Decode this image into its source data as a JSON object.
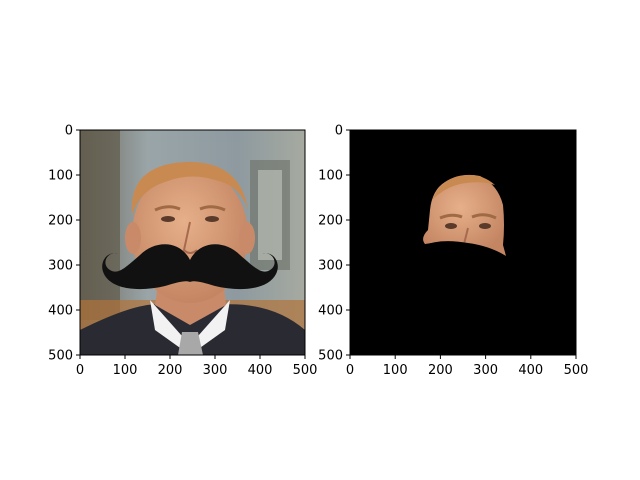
{
  "chart_data": [
    {
      "type": "image",
      "image_description_name": "portrait-with-mustache-overlay",
      "xlim": [
        0,
        500
      ],
      "ylim": [
        500,
        0
      ],
      "xticks": [
        0,
        100,
        200,
        300,
        400,
        500
      ],
      "yticks": [
        0,
        100,
        200,
        300,
        400,
        500
      ],
      "title": "",
      "xlabel": "",
      "ylabel": ""
    },
    {
      "type": "image",
      "image_description_name": "segmented-face-mask",
      "xlim": [
        0,
        500
      ],
      "ylim": [
        500,
        0
      ],
      "xticks": [
        0,
        100,
        200,
        300,
        400,
        500
      ],
      "yticks": [
        0,
        100,
        200,
        300,
        400,
        500
      ],
      "title": "",
      "xlabel": "",
      "ylabel": ""
    }
  ],
  "colors": {
    "skin": "#d9a07a",
    "hair": "#c98a52",
    "suit": "#2a2a32",
    "shirt": "#f2f2f2",
    "tie": "#a8a8a8",
    "mustache": "#111111",
    "mask_background": "#000000",
    "background_wall": "#8e9aa0"
  }
}
